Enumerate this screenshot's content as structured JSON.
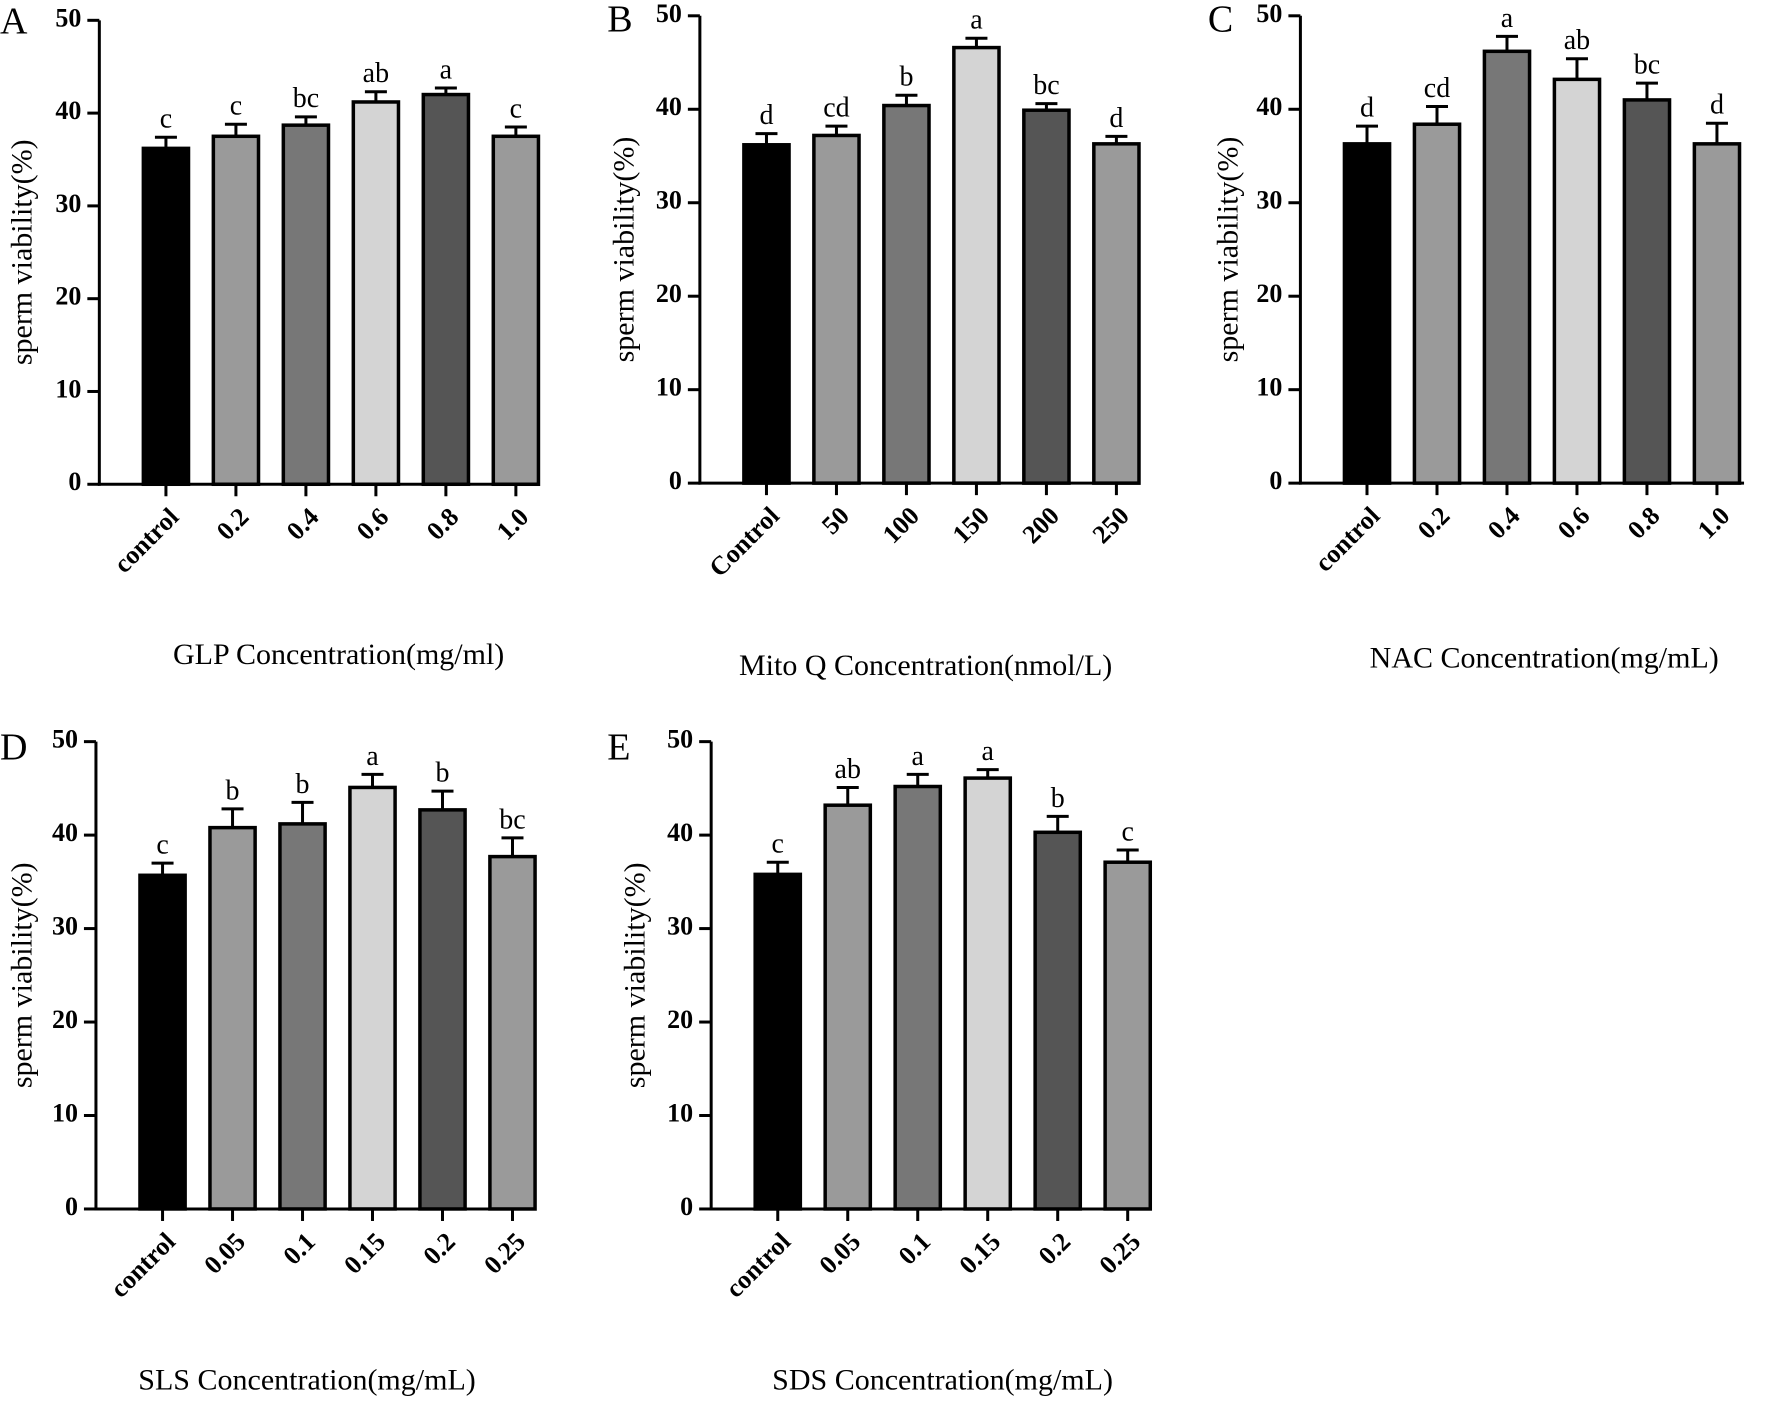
{
  "chart_data": [
    {
      "type": "bar",
      "panel_label": "A",
      "x_label": "GLP Concentration(mg/ml)",
      "y_label": "sperm viability(%)",
      "categories": [
        "control",
        "0.2",
        "0.4",
        "0.6",
        "0.8",
        "1.0"
      ],
      "values": [
        36.2,
        37.5,
        38.7,
        41.2,
        42.0,
        37.5
      ],
      "errors": [
        1.2,
        1.3,
        0.9,
        1.1,
        0.7,
        1.0
      ],
      "annotations": [
        "c",
        "c",
        "bc",
        "ab",
        "a",
        "c"
      ],
      "colors": [
        "#000000",
        "#9a9a9a",
        "#777777",
        "#d4d4d4",
        "#555555",
        "#9a9a9a"
      ],
      "ylim": [
        0,
        50
      ],
      "yticks": [
        0,
        10,
        20,
        30,
        40,
        50
      ]
    },
    {
      "type": "bar",
      "panel_label": "B",
      "x_label": "Mito Q Concentration(nmol/L)",
      "y_label": "sperm viability(%)",
      "categories": [
        "Control",
        "50",
        "100",
        "150",
        "200",
        "250"
      ],
      "values": [
        36.2,
        37.2,
        40.4,
        46.6,
        39.9,
        36.3
      ],
      "errors": [
        1.2,
        1.0,
        1.1,
        1.0,
        0.7,
        0.8
      ],
      "annotations": [
        "d",
        "cd",
        "b",
        "a",
        "bc",
        "d"
      ],
      "colors": [
        "#000000",
        "#9a9a9a",
        "#777777",
        "#d4d4d4",
        "#555555",
        "#9a9a9a"
      ],
      "ylim": [
        0,
        50
      ],
      "yticks": [
        0,
        10,
        20,
        30,
        40,
        50
      ]
    },
    {
      "type": "bar",
      "panel_label": "C",
      "x_label": "NAC Concentration(mg/mL)",
      "y_label": "sperm viability(%)",
      "categories": [
        "control",
        "0.2",
        "0.4",
        "0.6",
        "0.8",
        "1.0"
      ],
      "values": [
        36.3,
        38.4,
        46.2,
        43.2,
        41.0,
        36.3
      ],
      "errors": [
        1.9,
        1.9,
        1.6,
        2.2,
        1.8,
        2.2
      ],
      "annotations": [
        "d",
        "cd",
        "a",
        "ab",
        "bc",
        "d"
      ],
      "colors": [
        "#000000",
        "#9a9a9a",
        "#777777",
        "#d4d4d4",
        "#555555",
        "#9a9a9a"
      ],
      "ylim": [
        0,
        50
      ],
      "yticks": [
        0,
        10,
        20,
        30,
        40,
        50
      ]
    },
    {
      "type": "bar",
      "panel_label": "D",
      "x_label": "SLS Concentration(mg/mL)",
      "y_label": "sperm viability(%)",
      "categories": [
        "control",
        "0.05",
        "0.1",
        "0.15",
        "0.2",
        "0.25"
      ],
      "values": [
        35.7,
        40.8,
        41.2,
        45.1,
        42.7,
        37.7
      ],
      "errors": [
        1.3,
        2.0,
        2.3,
        1.4,
        2.0,
        2.0
      ],
      "annotations": [
        "c",
        "b",
        "b",
        "a",
        "b",
        "bc"
      ],
      "colors": [
        "#000000",
        "#9a9a9a",
        "#777777",
        "#d4d4d4",
        "#555555",
        "#9a9a9a"
      ],
      "ylim": [
        0,
        50
      ],
      "yticks": [
        0,
        10,
        20,
        30,
        40,
        50
      ]
    },
    {
      "type": "bar",
      "panel_label": "E",
      "x_label": "SDS Concentration(mg/mL)",
      "y_label": "sperm viability(%)",
      "categories": [
        "control",
        "0.05",
        "0.1",
        "0.15",
        "0.2",
        "0.25"
      ],
      "values": [
        35.8,
        43.2,
        45.2,
        46.1,
        40.3,
        37.1
      ],
      "errors": [
        1.3,
        1.9,
        1.3,
        0.9,
        1.7,
        1.3
      ],
      "annotations": [
        "c",
        "ab",
        "a",
        "a",
        "b",
        "c"
      ],
      "colors": [
        "#000000",
        "#9a9a9a",
        "#777777",
        "#d4d4d4",
        "#555555",
        "#9a9a9a"
      ],
      "ylim": [
        0,
        50
      ],
      "yticks": [
        0,
        10,
        20,
        30,
        40,
        50
      ]
    }
  ]
}
